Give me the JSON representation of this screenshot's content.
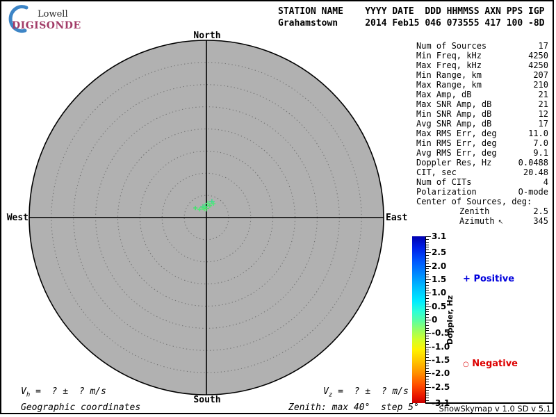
{
  "logo": {
    "name": "Lowell",
    "product": "DIGISONDE",
    "crescent_color": "#3d85c6",
    "product_color": "#a23b67"
  },
  "header": {
    "row1": "STATION NAME    YYYY DATE  DDD HHMMSS AXN PPS IGP",
    "row2": "Grahamstown     2014 Feb15 046 073555 417 100 -8D"
  },
  "compass": {
    "north": "North",
    "south": "South",
    "east": "East",
    "west": "West"
  },
  "stats": {
    "rows": [
      {
        "label": "Num of Sources",
        "value": "17"
      },
      {
        "label": "Min Freq, kHz",
        "value": "4250"
      },
      {
        "label": "Max Freq, kHz",
        "value": "4250"
      },
      {
        "label": "Min Range, km",
        "value": "207"
      },
      {
        "label": "Max Range, km",
        "value": "210"
      },
      {
        "label": "Max Amp, dB",
        "value": "21"
      },
      {
        "label": "Max SNR Amp, dB",
        "value": "21"
      },
      {
        "label": "Min SNR Amp, dB",
        "value": "12"
      },
      {
        "label": "Avg SNR Amp, dB",
        "value": "17"
      },
      {
        "label": "Max RMS Err, deg",
        "value": "11.0"
      },
      {
        "label": "Min RMS Err, deg",
        "value": "7.0"
      },
      {
        "label": "Avg RMS Err, deg",
        "value": "9.1"
      },
      {
        "label": "Doppler Res, Hz",
        "value": "0.0488"
      },
      {
        "label": "CIT, sec",
        "value": "20.48"
      },
      {
        "label": "Num of CITs",
        "value": "4"
      },
      {
        "label": "Polarization",
        "value": "O-mode"
      },
      {
        "label": "Center of Sources, deg:",
        "value": ""
      },
      {
        "label": "Zenith",
        "value": "2.5",
        "indent": true
      },
      {
        "label": "Azimuth",
        "value": "345",
        "indent": true,
        "arrow": "↖"
      }
    ]
  },
  "legend": {
    "positive_marker": "+",
    "positive_label": "Positive",
    "positive_color": "#0000dd",
    "negative_marker": "○",
    "negative_label": "Negative",
    "negative_color": "#dd0000"
  },
  "footer": {
    "vh_symbol": "V",
    "vh_sub": "h",
    "vh_eq": " =  ? ±  ? m/s",
    "vz_symbol": "V",
    "vz_sub": "z",
    "vz_eq": " =  ? ±  ? m/s",
    "coordinates": "Geographic coordinates",
    "zenith_note": "Zenith: max 40°  step 5°",
    "version": "ShowSkymap v 1.0   SD v 5.1"
  },
  "chart_data": {
    "type": "scatter",
    "projection": "polar-skymap (azimuth from North, zenith radial)",
    "zenith_max_deg": 40,
    "zenith_step_deg": 5,
    "rings": 8,
    "disc_color": "#b1b1b1",
    "ring_dot_color": "#737373",
    "compass_labels": [
      "North",
      "East",
      "South",
      "West"
    ],
    "num_sources": 17,
    "points": [
      {
        "azimuth_deg": 311,
        "zenith_deg": 3.3,
        "doppler_hz": 0.15,
        "marker": "+",
        "color": "#46e06e",
        "size": 3
      },
      {
        "azimuth_deg": 320,
        "zenith_deg": 2.4,
        "doppler_hz": 0.2,
        "marker": "+",
        "color": "#52ea78",
        "size": 3
      },
      {
        "azimuth_deg": 342,
        "zenith_deg": 2.5,
        "doppler_hz": 0.25,
        "marker": "+",
        "color": "#3eda7e",
        "size": 4
      },
      {
        "azimuth_deg": 347,
        "zenith_deg": 2.1,
        "doppler_hz": 0.2,
        "marker": "+",
        "color": "#5bef6b",
        "size": 4
      },
      {
        "azimuth_deg": 353,
        "zenith_deg": 2.5,
        "doppler_hz": 0.3,
        "marker": "+",
        "color": "#49e388",
        "size": 4
      },
      {
        "azimuth_deg": 0,
        "zenith_deg": 2.0,
        "doppler_hz": 0.2,
        "marker": "+",
        "color": "#44df66",
        "size": 4
      },
      {
        "azimuth_deg": 6,
        "zenith_deg": 3.2,
        "doppler_hz": 0.25,
        "marker": "+",
        "color": "#57ec7f",
        "size": 4
      },
      {
        "azimuth_deg": 16,
        "zenith_deg": 2.8,
        "doppler_hz": 0.15,
        "marker": "+",
        "color": "#4de572",
        "size": 3
      },
      {
        "azimuth_deg": 19,
        "zenith_deg": 3.8,
        "doppler_hz": 0.25,
        "marker": "+",
        "color": "#41dc8c",
        "size": 4
      },
      {
        "azimuth_deg": 27,
        "zenith_deg": 3.5,
        "doppler_hz": 0.2,
        "marker": "+",
        "color": "#50e87a",
        "size": 3
      }
    ],
    "colorbar": {
      "label": "Doppler, Hz",
      "min": -3.1,
      "max": 3.1,
      "minor_tick_step": 0.1,
      "ticks": [
        {
          "v": 3.1,
          "label": "3.1"
        },
        {
          "v": 2.5,
          "label": "2.5"
        },
        {
          "v": 2.0,
          "label": "2.0"
        },
        {
          "v": 1.5,
          "label": "1.5"
        },
        {
          "v": 1.0,
          "label": "1.0"
        },
        {
          "v": 0.5,
          "label": "0.5"
        },
        {
          "v": 0,
          "label": "0"
        },
        {
          "v": -0.5,
          "label": "-0.5"
        },
        {
          "v": -1.0,
          "label": "-1.0"
        },
        {
          "v": -1.5,
          "label": "-1.5"
        },
        {
          "v": -2.0,
          "label": "-2.0"
        },
        {
          "v": -2.5,
          "label": "-2.5"
        },
        {
          "v": -3.1,
          "label": "-3.1"
        }
      ],
      "gradient_stops": [
        [
          "0%",
          "#0000b0"
        ],
        [
          "7%",
          "#0020e8"
        ],
        [
          "15%",
          "#0057ff"
        ],
        [
          "23%",
          "#008cff"
        ],
        [
          "31%",
          "#00c0ff"
        ],
        [
          "39%",
          "#00ecff"
        ],
        [
          "45%",
          "#2cffd8"
        ],
        [
          "50%",
          "#55ffa8"
        ],
        [
          "56%",
          "#96ff64"
        ],
        [
          "62%",
          "#d2ff2a"
        ],
        [
          "68%",
          "#fff200"
        ],
        [
          "75%",
          "#ffc400"
        ],
        [
          "82%",
          "#ff9000"
        ],
        [
          "89%",
          "#ff5000"
        ],
        [
          "96%",
          "#e81400"
        ],
        [
          "100%",
          "#c80000"
        ]
      ]
    }
  }
}
